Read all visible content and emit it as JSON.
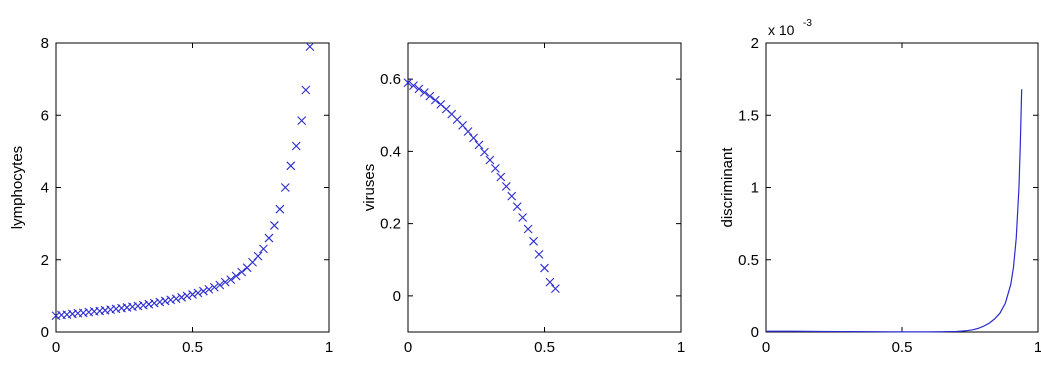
{
  "chart_data": [
    {
      "type": "scatter",
      "title": "",
      "xlabel": "",
      "ylabel": "lymphocytes",
      "xlim": [
        0,
        1
      ],
      "ylim": [
        0,
        8
      ],
      "xticks": [
        0,
        0.5,
        1
      ],
      "xtick_labels": [
        "0",
        "0.5",
        "1"
      ],
      "yticks": [
        0,
        2,
        4,
        6,
        8
      ],
      "ytick_labels": [
        "0",
        "2",
        "4",
        "6",
        "8"
      ],
      "marker": "x",
      "color": "#2b2bd0",
      "grid": false,
      "series": [
        {
          "x": [
            0.0,
            0.02,
            0.04,
            0.06,
            0.08,
            0.1,
            0.12,
            0.14,
            0.16,
            0.18,
            0.2,
            0.22,
            0.24,
            0.26,
            0.28,
            0.3,
            0.32,
            0.34,
            0.36,
            0.38,
            0.4,
            0.42,
            0.44,
            0.46,
            0.48,
            0.5,
            0.52,
            0.54,
            0.56,
            0.58,
            0.6,
            0.62,
            0.64,
            0.66,
            0.68,
            0.7,
            0.72,
            0.74,
            0.76,
            0.78,
            0.8,
            0.82,
            0.84,
            0.86,
            0.88,
            0.9,
            0.915,
            0.93
          ],
          "y": [
            0.45,
            0.47,
            0.48,
            0.5,
            0.52,
            0.53,
            0.55,
            0.57,
            0.58,
            0.6,
            0.62,
            0.64,
            0.66,
            0.68,
            0.7,
            0.72,
            0.74,
            0.77,
            0.8,
            0.83,
            0.86,
            0.89,
            0.92,
            0.96,
            1.0,
            1.04,
            1.08,
            1.13,
            1.18,
            1.24,
            1.3,
            1.38,
            1.45,
            1.55,
            1.66,
            1.78,
            1.93,
            2.1,
            2.3,
            2.6,
            2.95,
            3.4,
            4.0,
            4.6,
            5.15,
            5.85,
            6.7,
            7.9
          ]
        }
      ]
    },
    {
      "type": "scatter",
      "title": "",
      "xlabel": "",
      "ylabel": "viruses",
      "xlim": [
        0,
        1
      ],
      "ylim": [
        -0.1,
        0.7
      ],
      "xticks": [
        0,
        0.5,
        1
      ],
      "xtick_labels": [
        "0",
        "0.5",
        "1"
      ],
      "yticks": [
        0,
        0.2,
        0.4,
        0.6
      ],
      "ytick_labels": [
        "0",
        "0.2",
        "0.4",
        "0.6"
      ],
      "marker": "x",
      "color": "#2b2bd0",
      "grid": false,
      "series": [
        {
          "x": [
            0.0,
            0.02,
            0.04,
            0.06,
            0.08,
            0.1,
            0.12,
            0.14,
            0.16,
            0.18,
            0.2,
            0.22,
            0.24,
            0.26,
            0.28,
            0.3,
            0.32,
            0.34,
            0.36,
            0.38,
            0.4,
            0.42,
            0.44,
            0.46,
            0.48,
            0.5,
            0.52,
            0.54
          ],
          "y": [
            0.59,
            0.582,
            0.573,
            0.563,
            0.553,
            0.542,
            0.53,
            0.517,
            0.503,
            0.488,
            0.472,
            0.455,
            0.437,
            0.418,
            0.398,
            0.376,
            0.353,
            0.329,
            0.303,
            0.276,
            0.247,
            0.217,
            0.185,
            0.151,
            0.115,
            0.077,
            0.038,
            0.02
          ]
        }
      ]
    },
    {
      "type": "line",
      "title": "",
      "xlabel": "",
      "ylabel": "discriminant",
      "xlim": [
        0,
        1
      ],
      "ylim": [
        0,
        2
      ],
      "xticks": [
        0,
        0.5,
        1
      ],
      "xtick_labels": [
        "0",
        "0.5",
        "1"
      ],
      "yticks": [
        0,
        0.5,
        1,
        1.5,
        2
      ],
      "ytick_labels": [
        "0",
        "0.5",
        "1",
        "1.5",
        "2"
      ],
      "y_multiplier_base": "x 10",
      "y_multiplier_exponent": "-3",
      "color": "#2b2bd0",
      "grid": false,
      "series": [
        {
          "x": [
            0.0,
            0.1,
            0.2,
            0.3,
            0.4,
            0.5,
            0.6,
            0.65,
            0.7,
            0.72,
            0.74,
            0.76,
            0.78,
            0.8,
            0.82,
            0.84,
            0.86,
            0.88,
            0.9,
            0.91,
            0.92,
            0.93,
            0.935,
            0.94
          ],
          "y": [
            0.005,
            0.005,
            0.004,
            0.003,
            0.002,
            0.001,
            0.001,
            0.002,
            0.004,
            0.006,
            0.01,
            0.015,
            0.025,
            0.04,
            0.06,
            0.09,
            0.13,
            0.2,
            0.33,
            0.45,
            0.65,
            1.0,
            1.3,
            1.68
          ]
        }
      ]
    }
  ]
}
